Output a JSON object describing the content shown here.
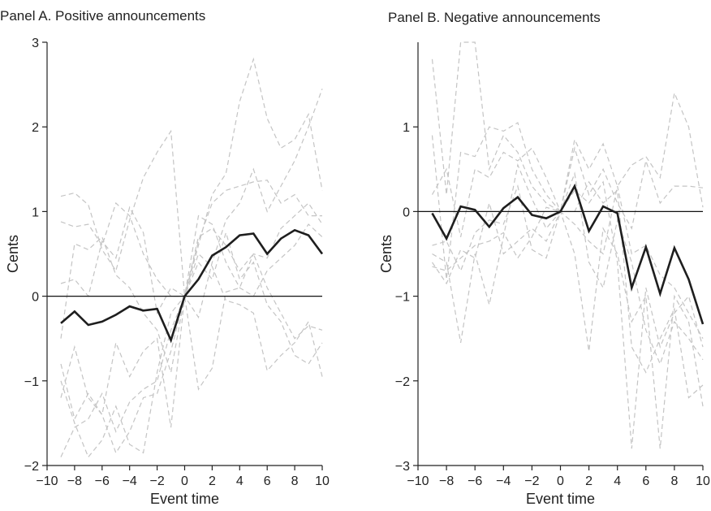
{
  "chart_data": [
    {
      "type": "line",
      "title": "Panel A. Positive announcements",
      "xlabel": "Event time",
      "ylabel": "Cents",
      "xlim": [
        -10,
        10
      ],
      "ylim": [
        -2,
        3
      ],
      "xticks": [
        -10,
        -8,
        -6,
        -4,
        -2,
        0,
        2,
        4,
        6,
        8,
        10
      ],
      "yticks": [
        -2,
        -1,
        0,
        1,
        2,
        3
      ],
      "xtick_labels": [
        "−10",
        "−8",
        "−6",
        "−4",
        "−2",
        "0",
        "2",
        "4",
        "6",
        "8",
        "10"
      ],
      "ytick_labels": [
        "−2",
        "−1",
        "0",
        "1",
        "2",
        "3"
      ],
      "zero_line": true,
      "grid": false,
      "x": [
        -9,
        -8,
        -7,
        -6,
        -5,
        -4,
        -3,
        -2,
        -1,
        0,
        1,
        2,
        3,
        4,
        5,
        6,
        7,
        8,
        9,
        10
      ],
      "mean": [
        -0.32,
        -0.18,
        -0.34,
        -0.3,
        -0.22,
        -0.12,
        -0.17,
        -0.15,
        -0.52,
        0.0,
        0.2,
        0.48,
        0.58,
        0.72,
        0.74,
        0.5,
        0.68,
        0.78,
        0.72,
        0.5
      ],
      "series": [
        {
          "values": [
            1.18,
            1.22,
            1.08,
            0.55,
            0.3,
            0.9,
            1.4,
            1.7,
            1.95,
            0.0,
            0.6,
            1.2,
            1.45,
            2.3,
            2.8,
            2.1,
            1.75,
            1.85,
            2.15,
            1.25
          ]
        },
        {
          "values": [
            0.88,
            0.82,
            0.85,
            0.6,
            1.1,
            0.95,
            0.5,
            0.2,
            0.0,
            0.0,
            -0.25,
            0.4,
            0.9,
            1.1,
            1.5,
            1.0,
            1.3,
            1.6,
            2.0,
            2.45
          ]
        },
        {
          "values": [
            0.15,
            0.2,
            0.0,
            0.65,
            0.45,
            1.05,
            0.75,
            -0.2,
            0.1,
            0.0,
            0.65,
            1.1,
            1.25,
            1.3,
            1.35,
            1.37,
            1.1,
            1.2,
            0.95,
            0.95
          ]
        },
        {
          "values": [
            -0.5,
            0.62,
            0.55,
            0.7,
            0.25,
            0.1,
            -0.2,
            -0.4,
            -0.9,
            0.0,
            0.95,
            0.85,
            0.4,
            0.1,
            0.0,
            0.3,
            0.45,
            0.6,
            0.85,
            0.7
          ]
        },
        {
          "values": [
            -1.2,
            -0.6,
            -1.2,
            -1.4,
            -0.55,
            -0.95,
            -0.65,
            -0.5,
            -1.55,
            0.0,
            0.5,
            0.35,
            -0.05,
            -0.1,
            -0.2,
            -0.88,
            -0.7,
            -0.55,
            -0.3,
            -0.95
          ]
        },
        {
          "values": [
            -1.9,
            -1.55,
            -1.45,
            -1.15,
            -1.6,
            -1.25,
            -1.1,
            -1.0,
            -0.4,
            0.0,
            -1.1,
            -0.85,
            0.05,
            0.1,
            0.5,
            0.45,
            0.8,
            0.95,
            1.1,
            0.85
          ]
        },
        {
          "values": [
            -1.0,
            -1.5,
            -1.9,
            -1.7,
            -1.3,
            -1.75,
            -1.85,
            -0.9,
            -0.2,
            0.0,
            0.7,
            0.8,
            0.6,
            0.3,
            0.5,
            0.1,
            -0.2,
            -0.5,
            -0.35,
            -0.4
          ]
        },
        {
          "values": [
            -0.8,
            -1.45,
            -1.15,
            -1.4,
            -1.85,
            -1.6,
            -1.2,
            -1.15,
            -0.65,
            0.0,
            0.4,
            0.2,
            0.75,
            0.2,
            0.4,
            -0.1,
            -0.3,
            -0.7,
            -0.8,
            -0.55
          ]
        }
      ]
    },
    {
      "type": "line",
      "title": "Panel B. Negative announcements",
      "xlabel": "Event time",
      "ylabel": "Cents",
      "xlim": [
        -10,
        10
      ],
      "ylim": [
        -3,
        2
      ],
      "xticks": [
        -10,
        -8,
        -6,
        -4,
        -2,
        0,
        2,
        4,
        6,
        8,
        10
      ],
      "yticks": [
        -3,
        -2,
        -1,
        0,
        1
      ],
      "xtick_labels": [
        "−10",
        "−8",
        "−6",
        "−4",
        "−2",
        "0",
        "2",
        "4",
        "6",
        "8",
        "10"
      ],
      "ytick_labels": [
        "−3",
        "−2",
        "−1",
        "0",
        "1"
      ],
      "zero_line": true,
      "grid": false,
      "x": [
        -9,
        -8,
        -7,
        -6,
        -5,
        -4,
        -3,
        -2,
        -1,
        0,
        1,
        2,
        3,
        4,
        5,
        6,
        7,
        8,
        9,
        10
      ],
      "mean": [
        -0.02,
        -0.32,
        0.06,
        0.02,
        -0.18,
        0.04,
        0.17,
        -0.04,
        -0.08,
        0.0,
        0.3,
        -0.23,
        0.06,
        -0.02,
        -0.9,
        -0.42,
        -0.97,
        -0.43,
        -0.8,
        -1.33
      ],
      "series": [
        {
          "values": [
            1.8,
            0.2,
            2.0,
            2.0,
            0.5,
            0.9,
            0.7,
            0.3,
            0.1,
            0.0,
            0.85,
            0.5,
            0.8,
            0.3,
            0.55,
            0.65,
            0.4,
            1.4,
            1.0,
            0.05
          ]
        },
        {
          "values": [
            0.9,
            -0.8,
            0.7,
            0.65,
            1.0,
            0.95,
            1.05,
            0.5,
            0.2,
            0.0,
            0.75,
            0.2,
            0.5,
            0.1,
            -0.2,
            0.6,
            0.1,
            0.3,
            0.3,
            0.28
          ]
        },
        {
          "values": [
            0.2,
            0.5,
            -0.3,
            0.5,
            0.4,
            0.7,
            0.6,
            0.75,
            0.4,
            0.0,
            -0.5,
            -1.65,
            -0.2,
            -0.5,
            -1.3,
            -1.0,
            -2.8,
            -1.0,
            -1.3,
            -2.3
          ]
        },
        {
          "values": [
            -0.5,
            -0.6,
            -1.55,
            -0.5,
            -1.1,
            -0.3,
            0.55,
            0.15,
            -0.2,
            0.0,
            0.25,
            0.1,
            0.35,
            -0.6,
            -2.8,
            -0.9,
            -1.6,
            -1.2,
            -1.0,
            -1.6
          ]
        },
        {
          "values": [
            -0.6,
            -0.85,
            -0.45,
            -0.55,
            0.1,
            -0.5,
            -0.35,
            -0.2,
            -0.35,
            0.0,
            0.0,
            0.35,
            0.1,
            0.25,
            -1.6,
            -1.9,
            -1.5,
            -1.15,
            -2.2,
            -2.05
          ]
        },
        {
          "values": [
            -0.65,
            -0.7,
            -0.55,
            -0.4,
            -0.35,
            -0.25,
            -0.55,
            -0.3,
            0.05,
            0.0,
            0.45,
            -0.6,
            -0.9,
            -0.1,
            -0.6,
            -1.4,
            -1.8,
            -1.3,
            -1.5,
            -1.75
          ]
        },
        {
          "values": [
            -0.4,
            -0.35,
            -0.7,
            -0.25,
            -0.1,
            -0.15,
            0.3,
            -0.45,
            -0.55,
            0.0,
            -0.15,
            -0.35,
            -0.5,
            0.3,
            -0.5,
            -0.4,
            -0.75,
            -0.9,
            -1.2,
            -1.5
          ]
        }
      ]
    }
  ]
}
